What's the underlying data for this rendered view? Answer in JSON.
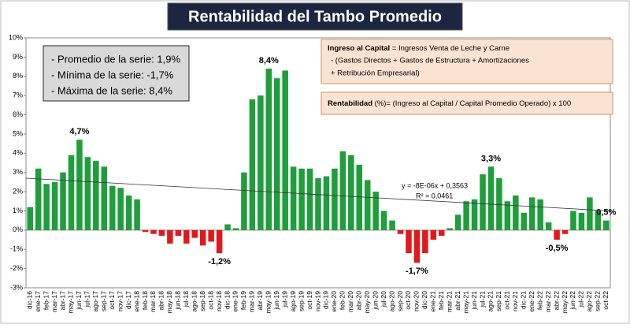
{
  "chart_data": {
    "type": "bar",
    "title": "Rentabilidad del Tambo Promedio",
    "categories": [
      "dic-16",
      "ene-17",
      "feb-17",
      "mar-17",
      "abr-17",
      "may-17",
      "jun-17",
      "jul-17",
      "ago-17",
      "sep-17",
      "oct-17",
      "nov-17",
      "dic-17",
      "ene-18",
      "feb-18",
      "mar-18",
      "abr-18",
      "may-18",
      "jun-18",
      "jul-18",
      "ago-18",
      "sep-18",
      "oct-18",
      "nov-18",
      "dic-18",
      "ene-19",
      "feb-19",
      "mar-19",
      "abr-19",
      "may-19",
      "jun-19",
      "jul-19",
      "ago-19",
      "sep-19",
      "oct-19",
      "nov-19",
      "dic-19",
      "ene-20",
      "feb-20",
      "mar-20",
      "abr-20",
      "may-20",
      "jun-20",
      "jul-20",
      "ago-20",
      "sep-20",
      "oct-20",
      "nov-20",
      "dic-20",
      "ene-21",
      "feb-21",
      "mar-21",
      "abr-21",
      "may-21",
      "jun-21",
      "jul-21",
      "ago-21",
      "sep-21",
      "oct-21",
      "nov-21",
      "dic-21",
      "ene-22",
      "feb-22",
      "mar-22",
      "abr-22",
      "may-22",
      "jun-22",
      "jul-22",
      "ago-22",
      "sep-22",
      "oct-22"
    ],
    "values": [
      1.2,
      3.2,
      2.4,
      2.5,
      3.0,
      3.9,
      4.7,
      3.8,
      3.6,
      3.3,
      2.3,
      2.2,
      1.8,
      1.6,
      -0.1,
      -0.2,
      -0.3,
      -0.7,
      -0.3,
      -0.7,
      -0.4,
      -0.8,
      -0.6,
      -1.2,
      0.3,
      0.1,
      3.0,
      6.8,
      7.0,
      8.4,
      7.9,
      8.3,
      3.3,
      3.2,
      3.2,
      2.7,
      2.8,
      3.2,
      4.1,
      3.9,
      3.4,
      2.6,
      2.0,
      1.0,
      0.5,
      -0.2,
      -1.2,
      -1.7,
      -1.2,
      -0.5,
      -0.3,
      0.1,
      0.8,
      1.5,
      1.6,
      2.9,
      3.3,
      2.7,
      1.5,
      1.8,
      0.9,
      1.7,
      1.6,
      0.4,
      -0.5,
      -0.2,
      1.0,
      0.9,
      1.7,
      1.0,
      0.5
    ],
    "value_labels": [
      null,
      null,
      null,
      null,
      null,
      null,
      "4,7%",
      null,
      null,
      null,
      null,
      null,
      null,
      null,
      null,
      null,
      null,
      null,
      null,
      null,
      null,
      null,
      null,
      "-1,2%",
      null,
      null,
      null,
      null,
      null,
      "8,4%",
      null,
      null,
      null,
      null,
      null,
      null,
      null,
      null,
      null,
      null,
      null,
      null,
      null,
      null,
      null,
      null,
      null,
      "-1,7%",
      null,
      null,
      null,
      null,
      null,
      null,
      null,
      null,
      "3,3%",
      null,
      null,
      null,
      null,
      null,
      null,
      null,
      "-0,5%",
      null,
      null,
      null,
      null,
      null,
      "0,5%"
    ],
    "positive_color": "#1f9e3c",
    "negative_color": "#e0191c",
    "ylim": [
      -3,
      10
    ],
    "yticks": [
      {
        "value": -3,
        "label": "-3%"
      },
      {
        "value": -2,
        "label": "-2%"
      },
      {
        "value": -1,
        "label": "-1%"
      },
      {
        "value": 0,
        "label": "0%"
      },
      {
        "value": 1,
        "label": "1%"
      },
      {
        "value": 2,
        "label": "2%"
      },
      {
        "value": 3,
        "label": "3%"
      },
      {
        "value": 4,
        "label": "4%"
      },
      {
        "value": 5,
        "label": "5%"
      },
      {
        "value": 6,
        "label": "6%"
      },
      {
        "value": 7,
        "label": "7%"
      },
      {
        "value": 8,
        "label": "8%"
      },
      {
        "value": 9,
        "label": "9%"
      },
      {
        "value": 10,
        "label": "10%"
      }
    ],
    "trendline": {
      "start": 2.7,
      "end": 1.0,
      "equation": "y = -8E-06x + 0,3563",
      "r2": "R² = 0,0461"
    },
    "stats_box": [
      "- Promedio de la serie: 1,9%",
      "- Mínima de la serie: -1,7%",
      "- Máxima de la serie: 8,4%"
    ],
    "formula_box": {
      "term": "Ingreso al Capital",
      "line1": " = Ingresos Venta de Leche y Carne",
      "line2": "-  (Gastos Directos + Gastos de Estructura  + Amortizaciones",
      "line3": "+  Retribución Empresarial)"
    },
    "rentabilidad_box": {
      "term": "Rentabilidad",
      "text": " (%)= (Ingreso al Capital / Capital Promedio Operado) x 100"
    }
  }
}
